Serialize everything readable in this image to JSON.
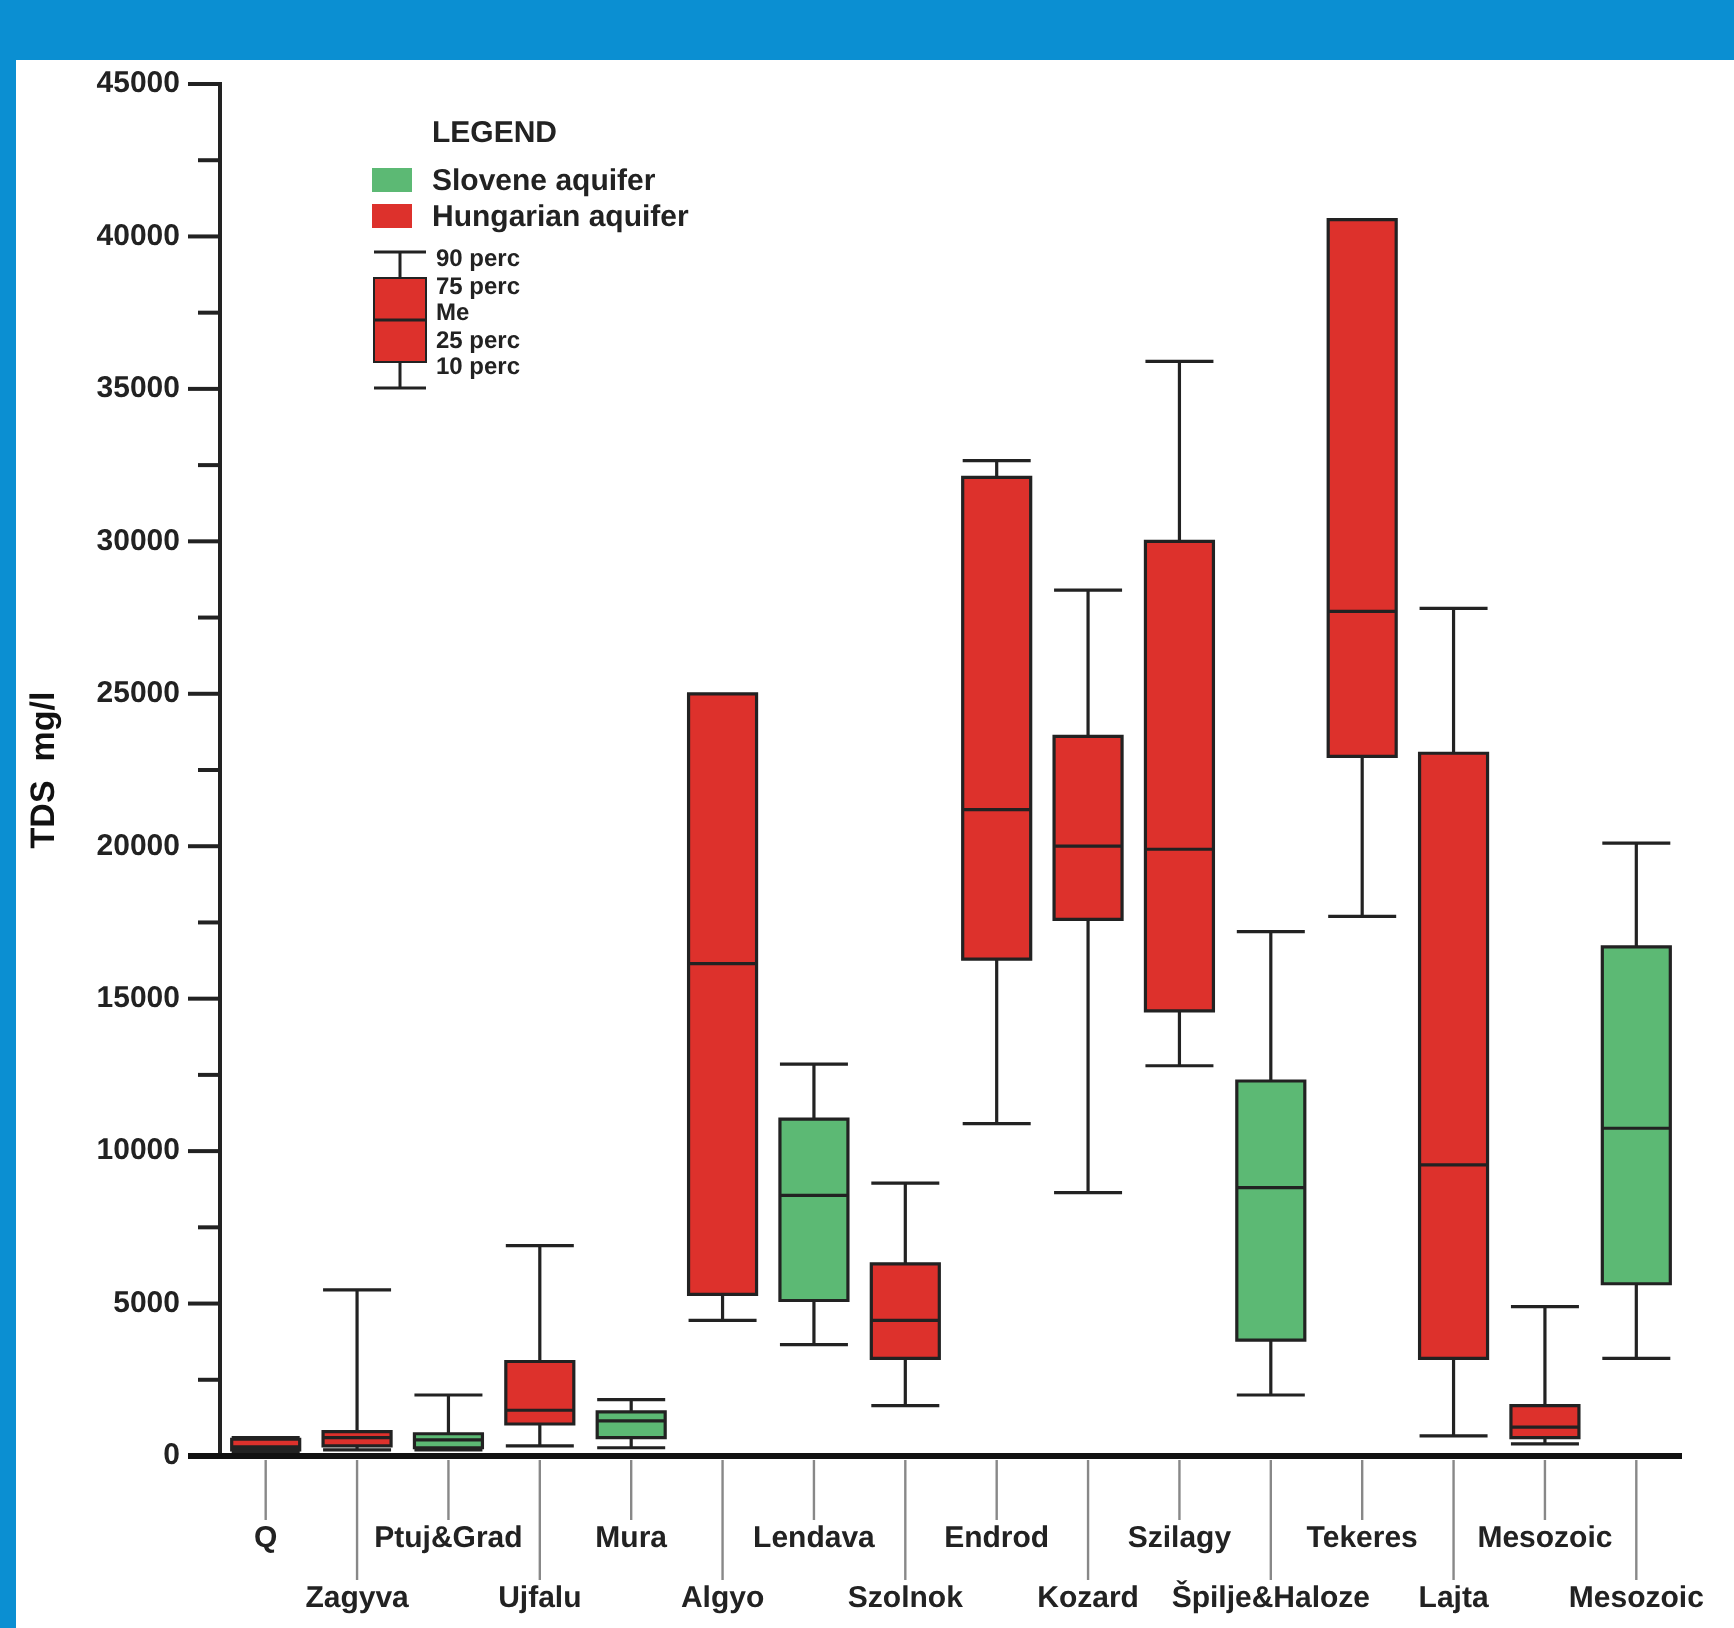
{
  "chart_data": {
    "type": "box",
    "ylabel": "TDS  mg/l",
    "legend_title": "LEGEND",
    "legend": "top left",
    "grid": false,
    "categories": [
      "Q",
      "Zagyva",
      "Ptuj&Grad",
      "Ujfalu",
      "Mura",
      "Algyo",
      "Lendava",
      "Szolnok",
      "Endrod",
      "Kozard",
      "Szilagy",
      "Špilje&Haloze",
      "Tekeres",
      "Lajta",
      "Mesozoic",
      "Mesozoic"
    ],
    "ylim": [
      0,
      45000
    ],
    "yticks": [
      0,
      {
        "value": 2500,
        "label": null
      },
      5000,
      {
        "value": 7500,
        "label": null
      },
      10000,
      {
        "value": 12500,
        "label": null
      },
      15000,
      {
        "value": 17500,
        "label": null
      },
      20000,
      {
        "value": 22500,
        "label": null
      },
      25000,
      {
        "value": 27500,
        "label": null
      },
      30000,
      {
        "value": 32500,
        "label": null
      },
      35000,
      {
        "value": 37500,
        "label": null
      },
      40000,
      {
        "value": 42500,
        "label": null
      },
      45000
    ],
    "annotations": [
      "90 perc",
      "75 perc",
      "Me",
      "25 perc",
      "10 perc"
    ],
    "series": [
      {
        "name": "Slovene aquifer",
        "color": "#5cb974",
        "boxes": [
          null,
          null,
          {
            "low": 200,
            "q1": 270,
            "median": 530,
            "q3": 730,
            "high": 2000
          },
          null,
          {
            "low": 270,
            "q1": 600,
            "median": 1150,
            "q3": 1450,
            "high": 1850
          },
          null,
          {
            "low": 3650,
            "q1": 5100,
            "median": 8550,
            "q3": 11050,
            "high": 12850
          },
          null,
          null,
          null,
          null,
          {
            "low": 2000,
            "q1": 3800,
            "median": 8800,
            "q3": 12300,
            "high": 17200
          },
          null,
          null,
          null,
          {
            "low": 3200,
            "q1": 5650,
            "median": 10750,
            "q3": 16700,
            "high": 20100
          }
        ]
      },
      {
        "name": "Hungarian aquifer",
        "color": "#dd312c",
        "boxes": [
          {
            "low": 100,
            "q1": 200,
            "median": 300,
            "q3": 550,
            "high": 600
          },
          {
            "low": 200,
            "q1": 330,
            "median": 600,
            "q3": 800,
            "high": 5450
          },
          null,
          {
            "low": 330,
            "q1": 1050,
            "median": 1500,
            "q3": 3100,
            "high": 6900
          },
          null,
          {
            "low": 4450,
            "q1": 5300,
            "median": 16150,
            "q3": 25000,
            "high": 25000
          },
          null,
          {
            "low": 1650,
            "q1": 3200,
            "median": 4450,
            "q3": 6300,
            "high": 8950
          },
          {
            "low": 10900,
            "q1": 16300,
            "median": 21200,
            "q3": 32100,
            "high": 32650
          },
          {
            "low": 8640,
            "q1": 17600,
            "median": 20000,
            "q3": 23600,
            "high": 28400
          },
          {
            "low": 12800,
            "q1": 14600,
            "median": 19900,
            "q3": 30000,
            "high": 35900
          },
          null,
          {
            "low": 17700,
            "q1": 22950,
            "median": 27700,
            "q3": 40550,
            "high": 40550
          },
          {
            "low": 660,
            "q1": 3200,
            "median": 9550,
            "q3": 23050,
            "high": 27800
          },
          {
            "low": 400,
            "q1": 600,
            "median": 950,
            "q3": 1650,
            "high": 4900
          },
          null
        ]
      }
    ]
  }
}
